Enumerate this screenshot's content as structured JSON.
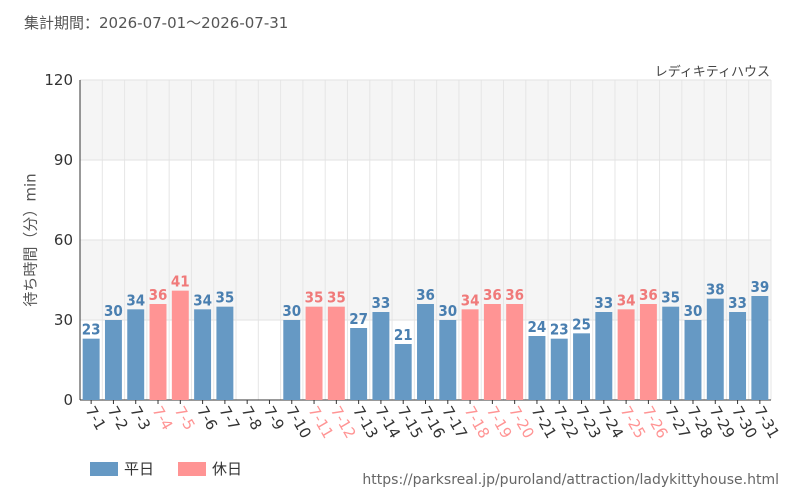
{
  "header": {
    "period_label": "集計期間：2026-07-01～2026-07-31",
    "attraction_name": "レディキティハウス"
  },
  "legend": {
    "weekday_label": "平日",
    "holiday_label": "休日"
  },
  "footer": {
    "source_url": "https://parksreal.jp/puroland/attraction/ladykittyhouse.html"
  },
  "colors": {
    "weekday": "#6699c4",
    "holiday": "#ff9494",
    "weekday_text": "#4a7fb0",
    "holiday_text": "#f07a7a"
  },
  "chart_data": {
    "type": "bar",
    "ylabel": "待ち時間（分）min",
    "ylim": [
      0,
      120
    ],
    "yticks": [
      0,
      30,
      60,
      90,
      120
    ],
    "grid": true,
    "categories": [
      "7-1",
      "7-2",
      "7-3",
      "7-4",
      "7-5",
      "7-6",
      "7-7",
      "7-8",
      "7-9",
      "7-10",
      "7-11",
      "7-12",
      "7-13",
      "7-14",
      "7-15",
      "7-16",
      "7-17",
      "7-18",
      "7-19",
      "7-20",
      "7-21",
      "7-22",
      "7-23",
      "7-24",
      "7-25",
      "7-26",
      "7-27",
      "7-28",
      "7-29",
      "7-30",
      "7-31"
    ],
    "day_types": [
      "weekday",
      "weekday",
      "weekday",
      "holiday",
      "holiday",
      "weekday",
      "weekday",
      "weekday",
      "weekday",
      "weekday",
      "holiday",
      "holiday",
      "weekday",
      "weekday",
      "weekday",
      "weekday",
      "weekday",
      "holiday",
      "holiday",
      "holiday",
      "weekday",
      "weekday",
      "weekday",
      "weekday",
      "holiday",
      "holiday",
      "weekday",
      "weekday",
      "weekday",
      "weekday",
      "weekday"
    ],
    "series": [
      {
        "values": [
          23,
          30,
          34,
          36,
          41,
          34,
          35,
          null,
          null,
          30,
          35,
          35,
          27,
          33,
          21,
          36,
          30,
          34,
          36,
          36,
          24,
          23,
          25,
          33,
          34,
          36,
          35,
          30,
          38,
          33,
          39
        ]
      }
    ]
  }
}
